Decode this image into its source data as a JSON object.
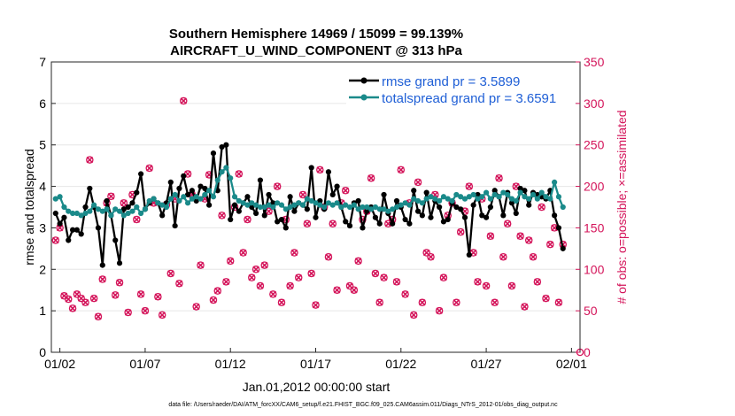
{
  "chart_data": {
    "type": "line",
    "title_line1": "Southern Hemisphere 14969 / 15099 = 99.139%",
    "title_line2": "AIRCRAFT_U_WIND_COMPONENT @ 313 hPa",
    "xlabel": "Jan.01,2012 00:00:00 start",
    "ylabel_left": "rmse and totalspread",
    "ylabel_right": "# of obs: o=possible; ×=assimilated",
    "footer": "data file: /Users/raeder/DAI/ATM_forcXX/CAM6_setup/f.e21.FHIST_BGC.f09_025.CAM6assim.011/Diags_NTrS_2012-01/obs_diag_output.nc",
    "x_range_days": [
      0.5,
      31.5
    ],
    "x_ticks": [
      {
        "day": 1,
        "label": "01/02"
      },
      {
        "day": 6,
        "label": "01/07"
      },
      {
        "day": 11,
        "label": "01/12"
      },
      {
        "day": 16,
        "label": "01/17"
      },
      {
        "day": 21,
        "label": "01/22"
      },
      {
        "day": 26,
        "label": "01/27"
      },
      {
        "day": 31,
        "label": "02/01"
      }
    ],
    "ylim_left": [
      0,
      7
    ],
    "yticks_left": [
      "0",
      "1",
      "2",
      "3",
      "4",
      "5",
      "6",
      "7"
    ],
    "ylim_right": [
      0,
      350
    ],
    "yticks_right": [
      "0",
      "50",
      "100",
      "150",
      "200",
      "250",
      "300",
      "350"
    ],
    "legend": [
      {
        "label": "rmse grand pr = 3.5899",
        "color": "#000000"
      },
      {
        "label": "totalspread grand pr = 3.6591",
        "color": "#1a8a8a"
      }
    ],
    "series_rmse": [
      3.35,
      3.1,
      3.25,
      2.7,
      2.95,
      2.95,
      2.85,
      3.5,
      3.95,
      3.5,
      3.0,
      2.1,
      3.65,
      3.3,
      2.7,
      2.15,
      3.45,
      3.5,
      3.6,
      3.85,
      4.3,
      3.45,
      3.6,
      3.7,
      3.6,
      3.3,
      3.6,
      4.1,
      3.05,
      3.95,
      4.25,
      3.8,
      3.9,
      3.65,
      4.0,
      3.95,
      3.55,
      4.8,
      3.9,
      4.95,
      5.0,
      3.2,
      3.55,
      3.4,
      3.6,
      3.75,
      3.5,
      3.35,
      4.15,
      3.3,
      3.8,
      3.6,
      3.15,
      3.2,
      3.0,
      3.75,
      3.4,
      3.6,
      3.55,
      3.45,
      4.45,
      3.25,
      3.65,
      3.45,
      4.35,
      3.8,
      4.0,
      3.5,
      3.15,
      3.05,
      3.6,
      3.65,
      3.0,
      3.4,
      3.5,
      3.25,
      3.1,
      3.8,
      3.35,
      3.1,
      3.65,
      3.5,
      3.2,
      3.1,
      3.9,
      3.4,
      3.3,
      3.85,
      3.25,
      3.65,
      3.5,
      3.15,
      3.2,
      3.6,
      3.5,
      3.45,
      3.25,
      2.35,
      3.55,
      3.8,
      3.3,
      3.25,
      3.5,
      3.9,
      3.75,
      3.3,
      3.85,
      3.6,
      3.35,
      3.95,
      3.9,
      3.55,
      3.85,
      3.8,
      3.75,
      3.7,
      3.9,
      3.3,
      3.0,
      2.5
    ],
    "series_spread": [
      3.7,
      3.75,
      3.5,
      3.4,
      3.35,
      3.35,
      3.3,
      3.35,
      3.4,
      3.55,
      3.45,
      3.4,
      3.45,
      3.3,
      3.45,
      3.4,
      3.3,
      3.35,
      3.4,
      3.5,
      3.35,
      3.45,
      3.65,
      3.7,
      3.6,
      3.55,
      3.5,
      3.7,
      3.8,
      3.65,
      3.75,
      3.6,
      3.7,
      3.75,
      3.7,
      3.8,
      3.9,
      3.75,
      4.15,
      4.35,
      4.45,
      4.2,
      3.75,
      3.65,
      3.6,
      3.55,
      3.6,
      3.55,
      3.5,
      3.5,
      3.55,
      3.5,
      3.6,
      3.55,
      3.45,
      3.5,
      3.55,
      3.6,
      3.55,
      3.7,
      3.65,
      3.6,
      3.55,
      3.5,
      3.6,
      3.55,
      3.6,
      3.5,
      3.55,
      3.5,
      3.55,
      3.45,
      3.5,
      3.5,
      3.45,
      3.5,
      3.45,
      3.45,
      3.4,
      3.45,
      3.5,
      3.55,
      3.6,
      3.55,
      3.7,
      3.65,
      3.6,
      3.7,
      3.75,
      3.7,
      3.65,
      3.75,
      3.7,
      3.65,
      3.8,
      3.75,
      3.7,
      3.75,
      3.8,
      3.7,
      3.75,
      3.85,
      3.7,
      3.8,
      3.75,
      3.85,
      3.8,
      3.7,
      3.65,
      3.85,
      3.75,
      3.7,
      3.8,
      3.7,
      3.85,
      3.75,
      3.7,
      4.1,
      3.75,
      3.5
    ],
    "obs_possible": [
      135,
      150,
      68,
      64,
      53,
      70,
      65,
      60,
      232,
      65,
      43,
      88,
      180,
      188,
      69,
      84,
      180,
      48,
      190,
      160,
      70,
      50,
      222,
      180,
      67,
      45,
      178,
      95,
      185,
      83,
      303,
      215,
      190,
      55,
      105,
      185,
      214,
      63,
      74,
      165,
      85,
      110,
      175,
      215,
      120,
      160,
      90,
      100,
      80,
      105,
      170,
      70,
      200,
      60,
      160,
      80,
      120,
      90,
      190,
      155,
      95,
      57,
      220,
      175,
      115,
      155,
      75,
      180,
      195,
      80,
      75,
      110,
      160,
      170,
      210,
      95,
      60,
      90,
      155,
      160,
      85,
      220,
      70,
      180,
      45,
      205,
      60,
      120,
      115,
      190,
      50,
      90,
      165,
      180,
      60,
      145,
      170,
      200,
      120,
      85,
      185,
      80,
      140,
      60,
      210,
      115,
      155,
      80,
      200,
      140,
      55,
      135,
      115,
      85,
      175,
      65,
      130,
      150,
      60,
      130
    ],
    "obs_assim": [
      135,
      150,
      68,
      64,
      53,
      70,
      65,
      60,
      232,
      65,
      43,
      88,
      180,
      188,
      69,
      84,
      180,
      48,
      190,
      160,
      70,
      50,
      222,
      180,
      67,
      45,
      178,
      95,
      185,
      83,
      303,
      215,
      190,
      55,
      105,
      185,
      214,
      63,
      74,
      165,
      85,
      110,
      175,
      215,
      120,
      160,
      90,
      100,
      80,
      105,
      170,
      70,
      200,
      60,
      160,
      80,
      120,
      90,
      190,
      155,
      95,
      57,
      220,
      175,
      115,
      155,
      75,
      180,
      195,
      80,
      75,
      110,
      160,
      170,
      210,
      95,
      60,
      90,
      155,
      160,
      85,
      220,
      70,
      180,
      45,
      205,
      60,
      120,
      115,
      190,
      50,
      90,
      165,
      180,
      60,
      145,
      170,
      200,
      120,
      85,
      185,
      80,
      140,
      60,
      210,
      115,
      155,
      80,
      200,
      140,
      55,
      135,
      115,
      85,
      175,
      65,
      130,
      150,
      60,
      130
    ],
    "colors": {
      "rmse": "#000000",
      "spread": "#1a8a8a",
      "obs": "#d4145a",
      "grid": "#e6e6e6",
      "title": "#000000",
      "legend_text": "#1f5fd6"
    }
  }
}
